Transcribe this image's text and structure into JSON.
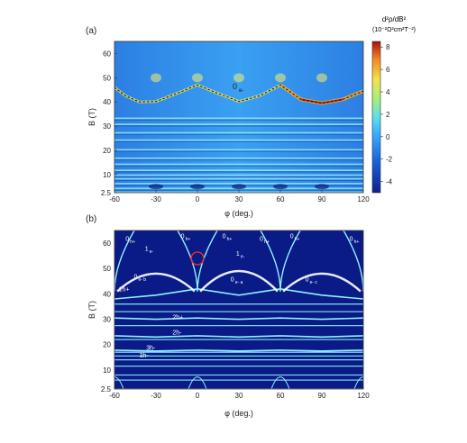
{
  "chart_data": [
    {
      "panel": "(a)",
      "type": "heatmap",
      "xlabel": "φ (deg.)",
      "ylabel": "B (T)",
      "xlim": [
        -60,
        120
      ],
      "ylim": [
        2.5,
        65
      ],
      "x_ticks": [
        "-60",
        "-30",
        "0",
        "30",
        "60",
        "90",
        "120"
      ],
      "x_tick_values": [
        -60,
        -30,
        0,
        30,
        60,
        90,
        120
      ],
      "y_ticks": [
        "2.5",
        "10",
        "20",
        "30",
        "40",
        "50",
        "60"
      ],
      "y_tick_values": [
        2.5,
        10,
        20,
        30,
        40,
        50,
        60
      ],
      "colorbar": {
        "label_line1": "d²ρ/dB²",
        "label_line2": "(10⁻²Ω²cm²T⁻²)",
        "ticks": [
          "8",
          "6",
          "4",
          "2",
          "0",
          "-2",
          "-4"
        ],
        "tick_values": [
          8,
          6,
          4,
          2,
          0,
          -2,
          -4
        ],
        "range": [
          -5,
          8.5
        ]
      },
      "horizontal_bands_B": [
        2.5,
        4,
        6,
        8,
        9.5,
        11.5,
        14,
        16.5,
        20,
        24,
        27,
        30.5,
        33
      ],
      "dashed_curve": {
        "label": "0",
        "label_sub": "e-",
        "points": [
          [
            -60,
            46
          ],
          [
            -52,
            42.5
          ],
          [
            -42,
            40
          ],
          [
            -30,
            40.2
          ],
          [
            -15,
            43.5
          ],
          [
            0,
            47
          ],
          [
            15,
            43.5
          ],
          [
            30,
            40.2
          ],
          [
            45,
            42.5
          ],
          [
            60,
            47
          ],
          [
            75,
            41
          ],
          [
            90,
            39.5
          ],
          [
            105,
            41
          ],
          [
            120,
            44.5
          ]
        ]
      }
    },
    {
      "panel": "(b)",
      "type": "line",
      "xlabel": "φ (deg.)",
      "ylabel": "B (T)",
      "xlim": [
        -60,
        120
      ],
      "ylim": [
        2.5,
        65
      ],
      "x_ticks": [
        "-60",
        "-30",
        "0",
        "30",
        "60",
        "90",
        "120"
      ],
      "x_tick_values": [
        -60,
        -30,
        0,
        30,
        60,
        90,
        120
      ],
      "y_ticks": [
        "2.5",
        "10",
        "20",
        "30",
        "40",
        "50",
        "60"
      ],
      "y_tick_values": [
        2.5,
        10,
        20,
        30,
        40,
        50,
        60
      ],
      "background_color": "#0a1a86",
      "line_color": "#8ff0ff",
      "highlight_circle": {
        "x": 0,
        "y": 54,
        "color": "#e8302a"
      },
      "labels": [
        {
          "text": "0",
          "sub": "h+",
          "x": -52,
          "y": 61
        },
        {
          "text": "0",
          "sub": "h+",
          "x": -12,
          "y": 62
        },
        {
          "text": "0",
          "sub": "h+",
          "x": 18,
          "y": 62
        },
        {
          "text": "0",
          "sub": "h+",
          "x": 45,
          "y": 61
        },
        {
          "text": "0",
          "sub": "h+",
          "x": 67,
          "y": 62
        },
        {
          "text": "0",
          "sub": "h+",
          "x": 110,
          "y": 61
        },
        {
          "text": "1",
          "sub": "e-",
          "x": -38,
          "y": 57
        },
        {
          "text": "1",
          "sub": "e-",
          "x": 28,
          "y": 55
        },
        {
          "text": "0",
          "sub": "e- b",
          "x": -46,
          "y": 46
        },
        {
          "text": "0",
          "sub": "e- a",
          "x": 24,
          "y": 45
        },
        {
          "text": "0",
          "sub": "e- c",
          "x": 78,
          "y": 45
        },
        {
          "text": "1h+",
          "sub": "",
          "x": -57,
          "y": 41
        },
        {
          "text": "2h+",
          "sub": "",
          "x": -18,
          "y": 30
        },
        {
          "text": "2h-",
          "sub": "",
          "x": -18,
          "y": 24
        },
        {
          "text": "3h-",
          "sub": "",
          "x": -37,
          "y": 18
        },
        {
          "text": "3h-",
          "sub": "",
          "x": -42,
          "y": 15
        }
      ],
      "flat_bands_B": [
        2.5,
        6,
        8,
        11.5,
        14,
        15.5,
        17,
        22,
        27.5,
        33,
        36
      ],
      "curves": [
        {
          "points": [
            [
              -60,
              38
            ],
            [
              -30,
              39.5
            ],
            [
              0,
              42
            ],
            [
              30,
              39.5
            ],
            [
              60,
              42
            ],
            [
              90,
              39.5
            ],
            [
              120,
              38
            ]
          ]
        },
        {
          "points": [
            [
              -60,
              30.5
            ],
            [
              -30,
              30
            ],
            [
              0,
              30.5
            ],
            [
              30,
              30
            ],
            [
              60,
              30.5
            ],
            [
              90,
              30
            ],
            [
              120,
              30.5
            ]
          ]
        },
        {
          "points": [
            [
              -60,
              23.5
            ],
            [
              -30,
              23
            ],
            [
              0,
              23.5
            ],
            [
              30,
              23
            ],
            [
              60,
              23.5
            ],
            [
              90,
              23
            ],
            [
              120,
              23.5
            ]
          ]
        },
        {
          "points": [
            [
              -60,
              17.8
            ],
            [
              -30,
              17.5
            ],
            [
              0,
              17.8
            ],
            [
              30,
              17.5
            ],
            [
              60,
              17.8
            ],
            [
              90,
              17.5
            ],
            [
              120,
              17.8
            ]
          ]
        }
      ],
      "arcs": [
        {
          "x0": -58,
          "x1": -2,
          "peak": 48,
          "base": 41
        },
        {
          "x0": 2,
          "x1": 58,
          "peak": 49,
          "base": 41
        },
        {
          "x0": 62,
          "x1": 118,
          "peak": 48,
          "base": 41
        }
      ],
      "crossings": [
        -60,
        0,
        60,
        120
      ]
    }
  ]
}
